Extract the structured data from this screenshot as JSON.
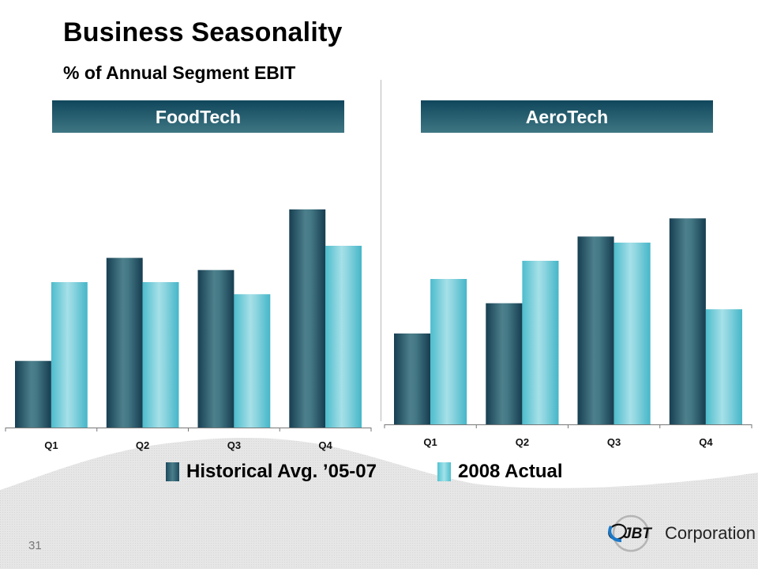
{
  "slide": {
    "title": "Business Seasonality",
    "subtitle": "% of Annual Segment EBIT",
    "page_number": "31"
  },
  "logo": {
    "mark": "JBT",
    "text": "Corporation"
  },
  "legend": {
    "historical": "Historical Avg. ’05-07",
    "actual": "2008 Actual"
  },
  "colors": {
    "historical": "#2b5f70",
    "actual": "#6ccfdb",
    "band": "#1f5568"
  },
  "chart_data": [
    {
      "type": "bar",
      "title": "FoodTech",
      "xlabel": "",
      "ylabel": "% of Annual Segment EBIT",
      "categories": [
        "Q1",
        "Q2",
        "Q3",
        "Q4"
      ],
      "series": [
        {
          "name": "Historical Avg. ’05-07",
          "values": [
            11,
            28,
            26,
            36
          ]
        },
        {
          "name": "2008 Actual",
          "values": [
            24,
            24,
            22,
            30
          ]
        }
      ],
      "ylim": [
        0,
        36
      ],
      "grid": false,
      "legend": "bottom"
    },
    {
      "type": "bar",
      "title": "AeroTech",
      "xlabel": "",
      "ylabel": "% of Annual Segment EBIT",
      "categories": [
        "Q1",
        "Q2",
        "Q3",
        "Q4"
      ],
      "series": [
        {
          "name": "Historical Avg. ’05-07",
          "values": [
            15,
            20,
            31,
            34
          ]
        },
        {
          "name": "2008 Actual",
          "values": [
            24,
            27,
            30,
            19
          ]
        }
      ],
      "ylim": [
        0,
        36
      ],
      "grid": false,
      "legend": "bottom"
    }
  ]
}
